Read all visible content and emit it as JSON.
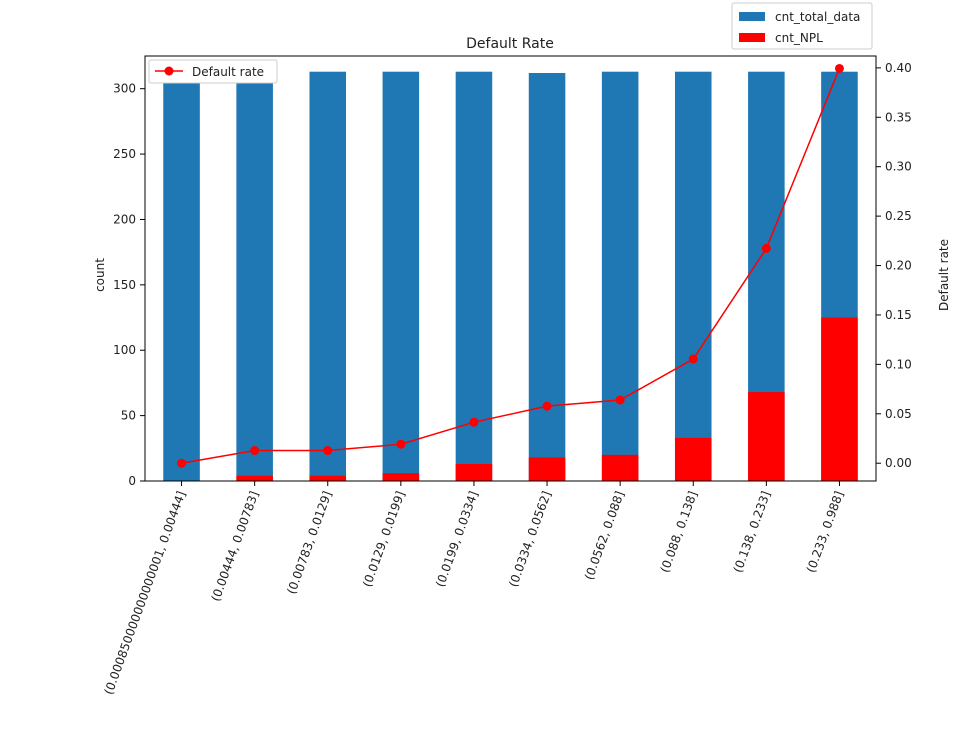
{
  "chart_data": {
    "type": "bar",
    "title": "Default Rate",
    "xlabel": "",
    "ylabel": "count",
    "y2label": "Default rate",
    "categories": [
      "(0.000850000000000001, 0.00444]",
      "(0.00444, 0.00783]",
      "(0.00783, 0.0129]",
      "(0.0129, 0.0199]",
      "(0.0199, 0.0334]",
      "(0.0334, 0.0562]",
      "(0.0562, 0.088]",
      "(0.088, 0.138]",
      "(0.138, 0.233]",
      "(0.233, 0.988]"
    ],
    "series": [
      {
        "name": "cnt_total_data",
        "kind": "bar",
        "axis": "left",
        "color": "#1f77b4",
        "values": [
          313,
          313,
          313,
          313,
          313,
          312,
          313,
          313,
          313,
          313
        ]
      },
      {
        "name": "cnt_NPL",
        "kind": "bar",
        "axis": "left",
        "color": "#ff0000",
        "values": [
          0,
          4,
          4,
          6,
          13,
          18,
          20,
          33,
          68,
          125
        ]
      },
      {
        "name": "Default rate",
        "kind": "line",
        "axis": "right",
        "color": "#ff0000",
        "values": [
          0.0,
          0.0128,
          0.0128,
          0.0192,
          0.0415,
          0.0577,
          0.0639,
          0.1054,
          0.2173,
          0.3994
        ]
      }
    ],
    "ylim": [
      0,
      325
    ],
    "y2lim": [
      -0.018,
      0.412
    ],
    "yticks": [
      0,
      50,
      100,
      150,
      200,
      250,
      300
    ],
    "y2ticks": [
      0.0,
      0.05,
      0.1,
      0.15,
      0.2,
      0.25,
      0.3,
      0.35,
      0.4
    ],
    "y2tick_labels": [
      "0.00",
      "0.05",
      "0.10",
      "0.15",
      "0.20",
      "0.25",
      "0.30",
      "0.35",
      "0.40"
    ],
    "grid": false,
    "legend_bars": {
      "placement": "above-top-right",
      "entries": [
        "cnt_total_data",
        "cnt_NPL"
      ]
    },
    "legend_line": {
      "placement": "top-left",
      "entries": [
        "Default rate"
      ]
    }
  }
}
